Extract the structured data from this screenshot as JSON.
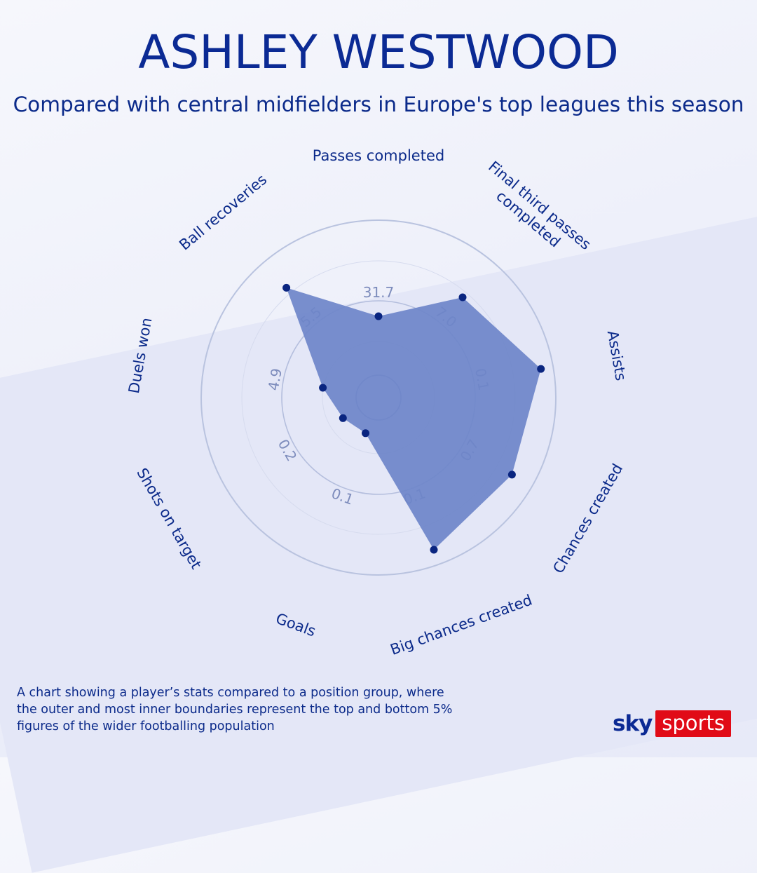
{
  "title": "ASHLEY WESTWOOD",
  "subtitle": "Compared with central midfielders in Europe's top leagues this season",
  "chart_data": {
    "type": "radar",
    "rings": 4,
    "colors": {
      "fill": "#6e86c9",
      "point": "#0a2580",
      "ring": "#bcc5df"
    },
    "axes": [
      {
        "label": "Passes completed",
        "value": 0.38,
        "ring_label": "31.7"
      },
      {
        "label": "Final third passes completed",
        "value": 0.7,
        "ring_label": "7.0"
      },
      {
        "label": "Assists",
        "value": 0.92,
        "ring_label": "0.1"
      },
      {
        "label": "Chances created",
        "value": 0.85,
        "ring_label": "0.7"
      },
      {
        "label": "Big chances created",
        "value": 0.9,
        "ring_label": "0.1"
      },
      {
        "label": "Goals",
        "value": 0.1,
        "ring_label": "0.1"
      },
      {
        "label": "Shots on target",
        "value": 0.12,
        "ring_label": "0.2"
      },
      {
        "label": "Duels won",
        "value": 0.22,
        "ring_label": "4.9"
      },
      {
        "label": "Ball recoveries",
        "value": 0.78,
        "ring_label": "5.5"
      }
    ]
  },
  "footnote": "A chart showing a player’s stats compared to a position group,  where\nthe outer and most inner boundaries represent the top  and bottom 5%\nfigures of the wider footballing population",
  "logo": {
    "sky": "sky",
    "sports": "sports"
  }
}
